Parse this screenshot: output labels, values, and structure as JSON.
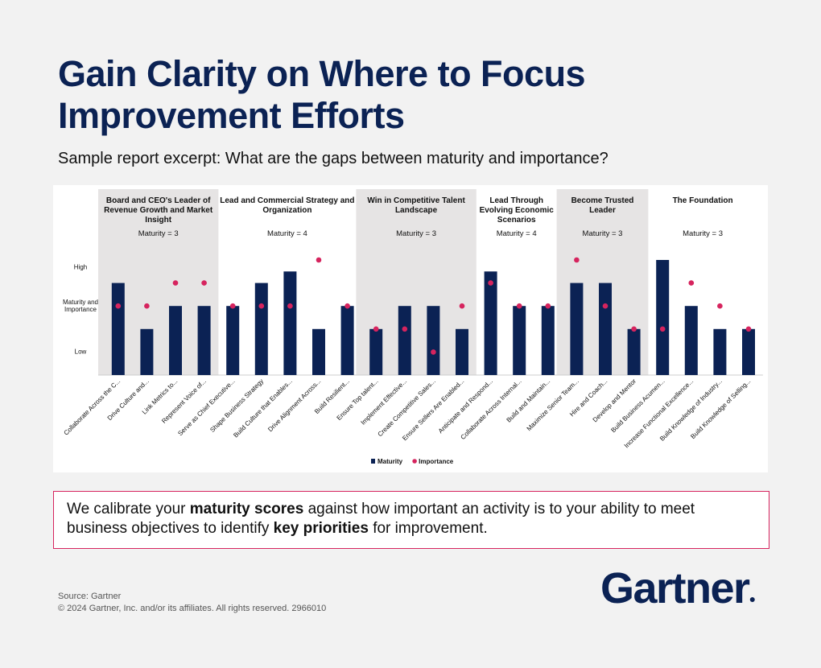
{
  "header": {
    "title": "Gain Clarity on Where to Focus Improvement Efforts",
    "subtitle": "Sample report excerpt: What are the gaps between maturity and importance?"
  },
  "chart_data": {
    "type": "bar",
    "categories": [
      "Collaborate Across the C...",
      "Drive Culture and...",
      "Link Metrics to...",
      "Represent Voice of...",
      "Serve as Chief Executive...",
      "Shape Business Strategy",
      "Build Culture that Enables...",
      "Drive Alignment Across...",
      "Build Resilient...",
      "Ensure Top talent...",
      "Implement Effective...",
      "Create Competitive Sales...",
      "Ensure Sellers Are Enabled...",
      "Anticipate and Respond...",
      "Collaborate Across Internal...",
      "Build and Maintain...",
      "Maximize Senior Team...",
      "Hire and Coach...",
      "Develop and Mentor",
      "Build Business Acumen...",
      "Increase Functional Excellence...",
      "Build Knowledge of Industry...",
      "Build Knowledge of Selling..."
    ],
    "series": [
      {
        "name": "Maturity",
        "color": "#0b2254",
        "mark": "bar",
        "values": [
          4,
          2,
          3,
          3,
          3,
          4,
          4.5,
          2,
          3,
          2,
          3,
          3,
          2,
          4.5,
          3,
          3,
          4,
          4,
          2,
          5,
          3,
          2,
          2
        ]
      },
      {
        "name": "Importance",
        "color": "#d6245e",
        "mark": "dot",
        "values": [
          3,
          3,
          4,
          4,
          3,
          3,
          3,
          5,
          3,
          2,
          2,
          1,
          3,
          4,
          3,
          3,
          5,
          3,
          2,
          2,
          4,
          3,
          2
        ]
      }
    ],
    "groups": [
      {
        "title": "Board and CEO's Leader of Revenue Growth and Market Insight",
        "note": "Maturity = 3",
        "span": 4,
        "shaded": true
      },
      {
        "title": "Lead and Commercial Strategy and Organization",
        "note": "Maturity = 4",
        "span": 5,
        "shaded": false
      },
      {
        "title": "Win in Competitive Talent Landscape",
        "note": "Maturity = 3",
        "span": 4,
        "shaded": true
      },
      {
        "title": "Lead Through Evolving Economic Scenarios",
        "note": "Maturity = 4",
        "span": 3,
        "shaded": false
      },
      {
        "title": "Become Trusted Leader",
        "note": "Maturity = 3",
        "span": 3,
        "shaded": true
      },
      {
        "title": "The Foundation",
        "note": "Maturity = 3",
        "span": 4,
        "shaded": false
      }
    ],
    "ylim": [
      0,
      5.5
    ],
    "yticks": [
      {
        "value": 1,
        "label": "Low"
      },
      {
        "value": 3,
        "label": "Maturity and Importance"
      },
      {
        "value": 4.7,
        "label": "High"
      }
    ],
    "legend": "bottom"
  },
  "callout": {
    "parts": [
      "We calibrate your ",
      "maturity scores",
      " against how important an activity is to your ability to meet business objectives to identify ",
      "key priorities",
      " for improvement."
    ]
  },
  "footer": {
    "source": "Source: Gartner",
    "copyright": "© 2024 Gartner, Inc. and/or its affiliates. All rights reserved. 2966010",
    "logo": "Gartner"
  }
}
